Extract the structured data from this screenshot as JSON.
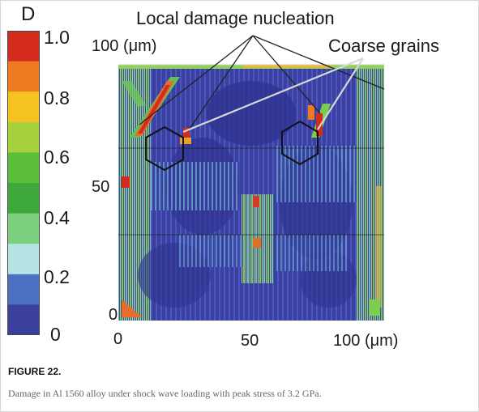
{
  "colorbar": {
    "title": "D",
    "ticks": [
      "1.0",
      "0.8",
      "0.6",
      "0.4",
      "0.2",
      "0"
    ],
    "colors": [
      "#d42c1c",
      "#f07a22",
      "#f5c21f",
      "#a7d23b",
      "#5bbf3a",
      "#3fa83a",
      "#7ccf7c",
      "#b6e3e3",
      "#4d6fc2",
      "#3b3f9e"
    ]
  },
  "plot": {
    "y_ticks": {
      "top": "100",
      "top_unit": "(μm)",
      "mid": "50",
      "bottom": "0"
    },
    "x_ticks": {
      "left": "0",
      "mid": "50",
      "right": "100",
      "right_unit": "(μm)"
    }
  },
  "annotations": {
    "damage": "Local damage nucleation",
    "grains": "Coarse grains"
  },
  "caption": {
    "title": "FIGURE 22.",
    "text": "Damage in Al 1560 alloy under shock wave loading with peak stress of 3.2 GPa."
  }
}
